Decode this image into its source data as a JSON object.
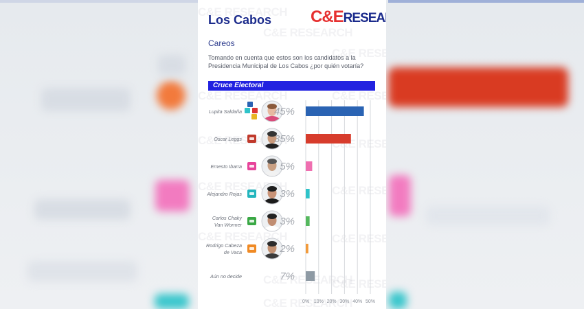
{
  "header": {
    "title": "Los Cabos",
    "logo_ce": "C&E",
    "logo_research": "RESEARCH",
    "subtitle": "Careos",
    "question": "Tomando en cuenta que estos son los candidatos a la Presidencia Municipal de Los Cabos ¿por quién votaría?",
    "banner": "Cruce Electoral"
  },
  "watermark": "C&E RESEARCH",
  "chart_data": {
    "type": "bar",
    "orientation": "horizontal",
    "title": "Cruce Electoral",
    "categories": [
      "Lupita Saldaña",
      "Oscar Leggs",
      "Ernesto Ibarra",
      "Alejandro Rojas",
      "Carlos Chaky Van Wormer",
      "Rodrigo Cabeza de Vaca",
      "Aún no decide"
    ],
    "values": [
      45,
      35,
      5,
      3,
      3,
      2,
      7
    ],
    "labels": [
      "45%",
      "35%",
      "5%",
      "3%",
      "3%",
      "2%",
      "7%"
    ],
    "colors": [
      "#2a63b3",
      "#d73c2c",
      "#ef6fb0",
      "#2fc3c9",
      "#55b85e",
      "#f29a3a",
      "#8e9aa4"
    ],
    "xlim": [
      0,
      50
    ],
    "xticks": [
      "0%",
      "10%",
      "20%",
      "30%",
      "40%",
      "50%"
    ],
    "grid": true
  },
  "candidates": [
    {
      "name_lines": [
        "Lupita Saldaña"
      ],
      "party_icons": [
        "#2a63b3",
        "#d33",
        "#2fc3c9",
        "#e8b423"
      ],
      "photo": true,
      "skin": "#e7b9a0",
      "hair": "#8a5a3c",
      "shirt": "#d94c7a"
    },
    {
      "name_lines": [
        "Oscar Leggs"
      ],
      "party_icons": [
        "#c0392b"
      ],
      "photo": true,
      "skin": "#c99a7c",
      "hair": "#333",
      "shirt": "#222"
    },
    {
      "name_lines": [
        "Ernesto Ibarra"
      ],
      "party_icons": [
        "#e7439a"
      ],
      "photo": true,
      "skin": "#c9a083",
      "hair": "#555",
      "shirt": "#f2f2f2"
    },
    {
      "name_lines": [
        "Alejandro Rojas"
      ],
      "party_icons": [
        "#23b5bd"
      ],
      "photo": true,
      "skin": "#c99377",
      "hair": "#1e1e1e",
      "shirt": "#1b1b1b"
    },
    {
      "name_lines": [
        "Carlos Chaky",
        "Van Wormer"
      ],
      "party_icons": [
        "#3aa845"
      ],
      "photo": true,
      "skin": "#c08d72",
      "hair": "#222",
      "shirt": "#ffffff"
    },
    {
      "name_lines": [
        "Rodrigo Cabeza",
        "de Vaca"
      ],
      "party_icons": [
        "#f08a24"
      ],
      "photo": true,
      "skin": "#c39273",
      "hair": "#2b2b2b",
      "shirt": "#3b3b3b"
    },
    {
      "name_lines": [
        "Aún no decide"
      ],
      "party_icons": [],
      "photo": false
    }
  ]
}
